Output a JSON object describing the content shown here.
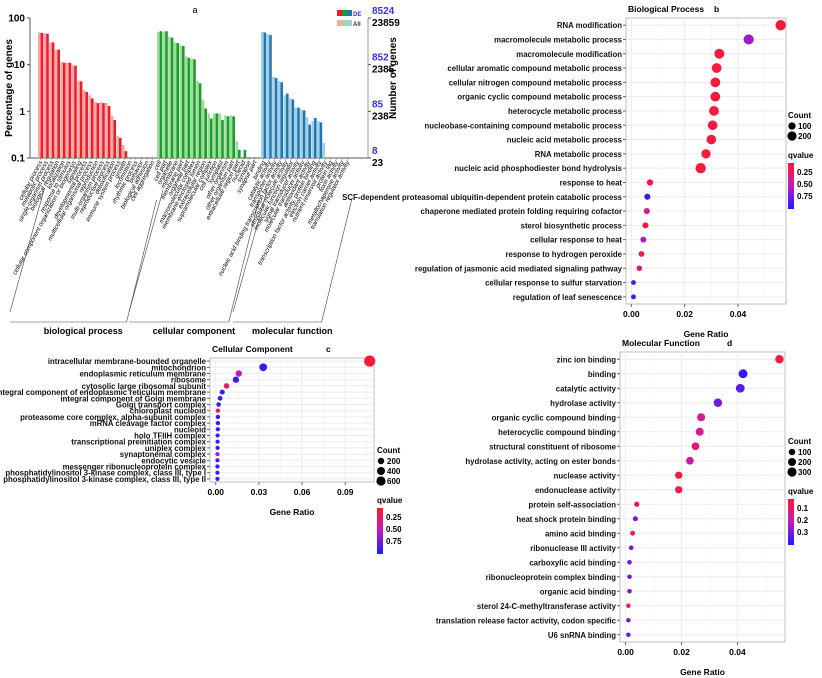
{
  "chart_data": [
    {
      "panel": "a",
      "type": "bar",
      "title": "a",
      "ylabel": "Percentage of genes",
      "ylabel_right": "Number of genes",
      "yscale": "log",
      "ylim": [
        0.1,
        100
      ],
      "yticks": [
        "0.1",
        "1",
        "10",
        "100"
      ],
      "right_ticks_de": [
        "8524",
        "852",
        "85",
        "8"
      ],
      "right_ticks_all": [
        "23859",
        "2385",
        "238",
        "23"
      ],
      "legend": {
        "de": "DE",
        "all": "All",
        "placement": "top-right"
      },
      "groups": [
        {
          "name": "biological process",
          "colors": {
            "de": "#ee1c25",
            "all": "#f7a8ad"
          },
          "categories": [
            "cellular process",
            "metabolic process",
            "single-organism process",
            "biological regulation",
            "localization",
            "response to stimulus",
            "cellular component organization or biogenesis",
            "signaling",
            "developmental process",
            "multicellular organismal process",
            "reproduction",
            "multi-organism process",
            "reproductive process",
            "detoxification",
            "immune system process",
            "growth",
            "locomotion",
            "rhythmic process",
            "behavior",
            "biological adhesion",
            "cell aggregation"
          ],
          "de": [
            48,
            46,
            30,
            21,
            11,
            11,
            9.5,
            4.4,
            2.6,
            1.9,
            1.5,
            1.5,
            1.3,
            0.65,
            0.27,
            0.14,
            0.1,
            0.1,
            0.1,
            0.1,
            0.1
          ],
          "all": [
            49,
            47,
            30,
            21,
            11.5,
            11,
            9.8,
            4.5,
            2.9,
            2.2,
            1.6,
            1.6,
            1.5,
            0.8,
            0.3,
            0.19,
            0.1,
            0.1,
            0.1,
            0.1,
            0.1
          ]
        },
        {
          "name": "cellular component",
          "colors": {
            "de": "#1a9e2b",
            "all": "#9fdb9a"
          },
          "categories": [
            "cell",
            "cell part",
            "organelle",
            "membrane",
            "membrane part",
            "organelle part",
            "macromolecular complex",
            "membrane-enclosed lumen",
            "extracellular region",
            "supramolecular complex",
            "cell junction",
            "symplast",
            "other organism",
            "other organism part",
            "extracellular region part",
            "nucleoid",
            "synapse",
            "synapse part"
          ],
          "de": [
            52,
            52,
            38,
            29,
            25,
            14,
            13,
            4,
            1.15,
            0.7,
            0.9,
            0.65,
            0.78,
            0.78,
            0.15,
            0.15,
            0.1,
            0.1
          ],
          "all": [
            50,
            51,
            40,
            30,
            26,
            15,
            13.5,
            4.5,
            1.8,
            0.9,
            0.9,
            0.9,
            0.82,
            0.82,
            0.23,
            0.1,
            0.1,
            0.1
          ]
        },
        {
          "name": "molecular function",
          "colors": {
            "de": "#1f78b4",
            "all": "#a6cee3"
          },
          "categories": [
            "binding",
            "catalytic activity",
            "transporter activity",
            "nucleic acid binding transcription factor activity",
            "structural molecule activity",
            "molecular function regulator",
            "signal transducer activity",
            "molecular transducer activity",
            "antioxidant activity",
            "transcription factor activity, protein binding",
            "electron carrier activity",
            "nutrient reservoir activity",
            "protein tag",
            "toxin activity",
            "metallochaperone activity",
            "translation regulator activity"
          ],
          "de": [
            49,
            43,
            5.2,
            4.2,
            2.4,
            1.8,
            1.2,
            1.05,
            0.52,
            0.72,
            0.58,
            0.1,
            0.1,
            0.1,
            0.1,
            0.1
          ],
          "all": [
            50,
            45,
            5.5,
            4.5,
            2.2,
            1.9,
            1.2,
            1.1,
            0.75,
            0.62,
            0.62,
            0.21,
            0.1,
            0.1,
            0.1,
            0.1
          ]
        }
      ]
    },
    {
      "panel": "b",
      "type": "scatter",
      "title": "Biological Process",
      "letter": "b",
      "xlabel": "Gene Ratio",
      "xlim": [
        -0.002,
        0.058
      ],
      "xticks": [
        0.0,
        0.02,
        0.04
      ],
      "xtick_labels": [
        "0.00",
        "0.02",
        "0.04"
      ],
      "size_legend_title": "Count",
      "size_legend": [
        100,
        200
      ],
      "color_legend_title": "qvalue",
      "color_legend_ticks": [
        "0.25",
        "0.50",
        "0.75"
      ],
      "color_range": [
        0.0,
        1.0
      ],
      "terms": [
        "RNA modification",
        "macromolecule metabolic process",
        "macromolecule modification",
        "cellular aromatic compound metabolic process",
        "cellular nitrogen compound metabolic process",
        "organic cyclic compound metabolic process",
        "heterocycle metabolic process",
        "nucleobase-containing compound metabolic process",
        "nucleic acid metabolic process",
        "RNA metabolic process",
        "nucleic acid phosphodiester bond hydrolysis",
        "response to heat",
        "SCF-dependent proteasomal ubiquitin-dependent protein catabolic process",
        "chaperone mediated protein folding requiring cofactor",
        "sterol biosynthetic process",
        "cellular response to heat",
        "response to hydrogen peroxide",
        "regulation of jasmonic acid mediated signaling pathway",
        "cellular response to sulfur starvation",
        "regulation of leaf senescence"
      ],
      "gene_ratio": [
        0.056,
        0.044,
        0.033,
        0.032,
        0.0315,
        0.0315,
        0.031,
        0.0305,
        0.03,
        0.028,
        0.026,
        0.007,
        0.006,
        0.0058,
        0.0053,
        0.0045,
        0.0038,
        0.003,
        0.0008,
        0.0008
      ],
      "count": [
        180,
        170,
        160,
        150,
        150,
        150,
        150,
        145,
        140,
        130,
        180,
        35,
        30,
        30,
        28,
        25,
        22,
        20,
        10,
        10
      ],
      "qvalue": [
        0.05,
        0.6,
        0.08,
        0.08,
        0.08,
        0.08,
        0.08,
        0.08,
        0.08,
        0.06,
        0.05,
        0.08,
        0.9,
        0.35,
        0.08,
        0.55,
        0.15,
        0.3,
        0.85,
        0.85
      ]
    },
    {
      "panel": "c",
      "type": "scatter",
      "title": "Cellular Component",
      "letter": "c",
      "xlabel": "Gene Ratio",
      "xlim": [
        -0.004,
        0.11
      ],
      "xticks": [
        0.0,
        0.03,
        0.06,
        0.09
      ],
      "xtick_labels": [
        "0.00",
        "0.03",
        "0.06",
        "0.09"
      ],
      "size_legend_title": "Count",
      "size_legend": [
        200,
        400,
        600
      ],
      "color_legend_title": "qvalue",
      "color_legend_ticks": [
        "0.25",
        "0.50",
        "0.75"
      ],
      "color_range": [
        0.0,
        1.0
      ],
      "terms": [
        "intracellular membrane-bounded organelle",
        "mitochondrion",
        "endoplasmic reticulum membrane",
        "ribosome",
        "cytosolic large ribosomal subunit",
        "integral component of endoplasmic reticulum membrane",
        "integral component of Golgi membrane",
        "Golgi transport complex",
        "chloroplast nucleoid",
        "proteasome core complex, alpha-subunit complex",
        "mRNA cleavage factor complex",
        "nucleoid",
        "holo TFIIH complex",
        "transcriptional preinitiation complex",
        "uniplex complex",
        "synaptonemal complex",
        "endocytic vesicle",
        "messenger ribonucleoprotein complex",
        "phosphatidylinositol 3-kinase complex, class III, type I",
        "phosphatidylinositol 3-kinase complex, class III, type II"
      ],
      "gene_ratio": [
        0.107,
        0.033,
        0.016,
        0.014,
        0.0075,
        0.0045,
        0.003,
        0.002,
        0.0015,
        0.0015,
        0.0015,
        0.0015,
        0.0013,
        0.0013,
        0.0013,
        0.0012,
        0.0012,
        0.0012,
        0.0012,
        0.0012
      ],
      "count": [
        650,
        220,
        110,
        100,
        55,
        35,
        25,
        18,
        15,
        15,
        12,
        12,
        10,
        10,
        10,
        10,
        10,
        10,
        10,
        10
      ],
      "qvalue": [
        0.05,
        0.9,
        0.5,
        0.9,
        0.2,
        0.9,
        0.9,
        0.9,
        0.15,
        0.9,
        0.9,
        0.9,
        0.9,
        0.9,
        0.9,
        0.55,
        0.9,
        0.9,
        0.9,
        0.9
      ]
    },
    {
      "panel": "d",
      "type": "scatter",
      "title": "Molecular Function",
      "letter": "d",
      "xlabel": "Gene Ratio",
      "xlim": [
        -0.002,
        0.057
      ],
      "xticks": [
        0.0,
        0.02,
        0.04
      ],
      "xtick_labels": [
        "0.00",
        "0.02",
        "0.04"
      ],
      "size_legend_title": "Count",
      "size_legend": [
        100,
        200,
        300
      ],
      "color_legend_title": "qvalue",
      "color_legend_ticks": [
        "0.1",
        "0.2",
        "0.3"
      ],
      "color_range": [
        0.02,
        0.33
      ],
      "terms": [
        "zinc ion binding",
        "binding",
        "catalytic activity",
        "hydrolase activity",
        "organic cyclic compound binding",
        "heterocyclic compound binding",
        "structural constituent of ribosome",
        "hydrolase activity, acting on ester bonds",
        "nuclease activity",
        "endonuclease activity",
        "protein self-association",
        "heat shock protein binding",
        "amino acid binding",
        "ribonuclease III activity",
        "carboxylic acid binding",
        "ribonucleoprotein complex binding",
        "organic acid binding",
        "sterol 24-C-methyltransferase activity",
        "translation release factor activity, codon specific",
        "U6 snRNA binding"
      ],
      "gene_ratio": [
        0.055,
        0.042,
        0.041,
        0.033,
        0.027,
        0.0265,
        0.025,
        0.023,
        0.019,
        0.019,
        0.004,
        0.0035,
        0.0025,
        0.002,
        0.0014,
        0.0014,
        0.0014,
        0.001,
        0.001,
        0.001
      ],
      "count": [
        140,
        170,
        165,
        140,
        120,
        120,
        110,
        105,
        90,
        90,
        20,
        18,
        15,
        12,
        10,
        10,
        10,
        8,
        8,
        8
      ],
      "qvalue": [
        0.05,
        0.31,
        0.27,
        0.25,
        0.13,
        0.13,
        0.1,
        0.15,
        0.05,
        0.05,
        0.05,
        0.25,
        0.1,
        0.25,
        0.25,
        0.25,
        0.25,
        0.08,
        0.25,
        0.25
      ]
    }
  ]
}
